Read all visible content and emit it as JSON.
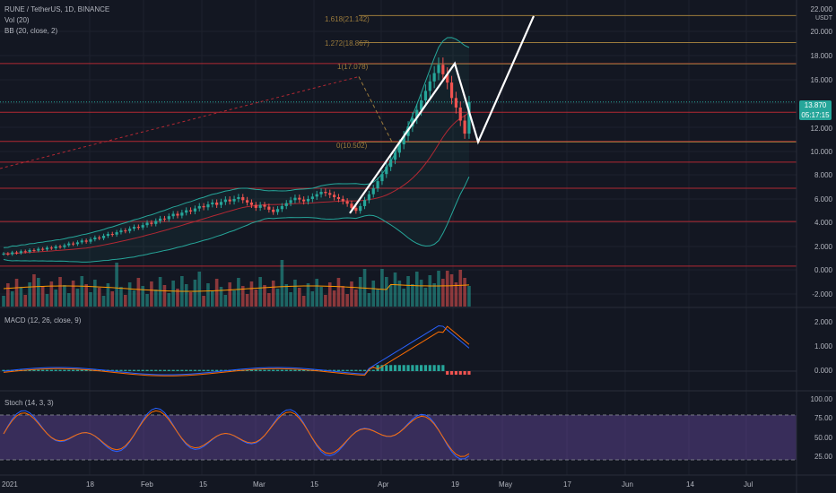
{
  "header": {
    "symbol": "RUNE / TetherUS, 1D, BINANCE",
    "indicators": [
      "Vol (20)",
      "BB (20, close, 2)"
    ],
    "currency": "USDT"
  },
  "price_axis": [
    "22.000",
    "20.000",
    "18.000",
    "16.000",
    "12.000",
    "10.000",
    "8.000",
    "6.000",
    "4.000",
    "2.000",
    "0.000",
    "-2.000"
  ],
  "current_price": {
    "value": "13.870",
    "countdown": "05:17:15",
    "color": "#26a69a"
  },
  "fib_levels": [
    {
      "label": "1.618(21.142)"
    },
    {
      "label": "1.272(18.867)"
    },
    {
      "label": "1(17.078)"
    },
    {
      "label": "0(10.502)"
    }
  ],
  "macd": {
    "title": "MACD (12, 26, close, 9)",
    "axis": [
      "2.000",
      "1.000",
      "0.000"
    ]
  },
  "stoch": {
    "title": "Stoch (14, 3, 3)",
    "axis": [
      "100.00",
      "75.00",
      "50.00",
      "25.00"
    ]
  },
  "time_axis": [
    "2021",
    "18",
    "Feb",
    "15",
    "Mar",
    "15",
    "Apr",
    "19",
    "May",
    "17",
    "Jun",
    "14",
    "Jul"
  ],
  "colors": {
    "up": "#26a69a",
    "down": "#ef5350",
    "macd": "#2962ff",
    "signal": "#ff6d00",
    "stoch_band": "#5b2c8f",
    "fib": "#9b7b3c",
    "hline": "#b22833"
  },
  "chart_data": {
    "type": "candlestick",
    "close_prices": [
      1.1,
      1.05,
      1.2,
      1.15,
      1.3,
      1.25,
      1.4,
      1.35,
      1.5,
      1.45,
      1.6,
      1.55,
      1.7,
      1.65,
      1.8,
      1.95,
      1.9,
      2.05,
      2.2,
      2.1,
      2.3,
      2.45,
      2.4,
      2.6,
      2.75,
      2.7,
      2.9,
      3.05,
      3.0,
      3.2,
      3.35,
      3.3,
      3.5,
      3.7,
      3.6,
      3.85,
      4.05,
      4.0,
      4.25,
      4.45,
      4.3,
      4.55,
      4.75,
      4.65,
      4.9,
      5.1,
      5.0,
      5.25,
      5.4,
      5.2,
      5.45,
      5.65,
      5.5,
      5.7,
      5.85,
      5.6,
      5.4,
      5.2,
      4.95,
      5.2,
      5.05,
      4.8,
      4.6,
      4.85,
      5.1,
      5.35,
      5.6,
      5.8,
      5.65,
      5.5,
      5.7,
      5.9,
      6.1,
      6.3,
      6.2,
      6.05,
      5.85,
      5.7,
      5.5,
      5.3,
      4.95,
      4.7,
      5.1,
      5.6,
      6.1,
      6.6,
      7.2,
      7.8,
      8.4,
      9.0,
      9.6,
      10.3,
      11.0,
      11.8,
      12.5,
      13.2,
      14.0,
      14.8,
      15.6,
      16.3,
      17.0,
      16.2,
      15.5,
      14.2,
      13.4,
      12.3,
      11.2,
      13.87
    ],
    "fib_values": [
      21.142,
      18.867,
      17.078,
      10.502
    ],
    "projection_path": [
      {
        "x": "Mar 24",
        "y": 4.5
      },
      {
        "x": "Apr 18",
        "y": 17.1
      },
      {
        "x": "Apr 23",
        "y": 10.5
      },
      {
        "x": "May 7",
        "y": 21.1
      }
    ]
  }
}
